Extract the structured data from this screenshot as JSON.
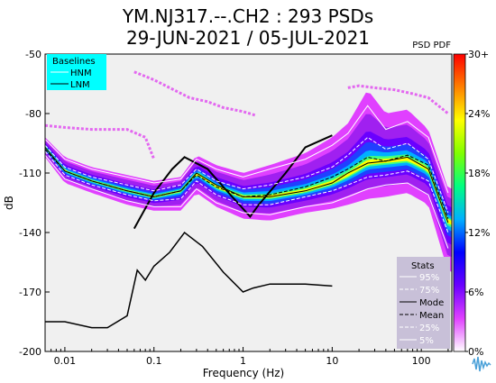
{
  "title_line1": "YM.NJ317.--.CH2 : 293 PSDs",
  "title_line2": "29-JUN-2021 / 05-JUL-2021",
  "pdf_label": "PSD PDF",
  "chart_data": {
    "type": "heatmap",
    "xlabel": "Frequency (Hz)",
    "ylabel": "dB",
    "x_scale": "log",
    "xlim": [
      0.006,
      220
    ],
    "ylim": [
      -200,
      -50
    ],
    "x_ticks": [
      {
        "value": 0.01,
        "label": "0.01"
      },
      {
        "value": 0.1,
        "label": "0.1"
      },
      {
        "value": 1,
        "label": "1"
      },
      {
        "value": 10,
        "label": "10"
      },
      {
        "value": 100,
        "label": "100"
      }
    ],
    "y_ticks": [
      {
        "value": -50,
        "label": "-50"
      },
      {
        "value": -80,
        "label": "-80"
      },
      {
        "value": -110,
        "label": "-110"
      },
      {
        "value": -140,
        "label": "-140"
      },
      {
        "value": -170,
        "label": "-170"
      },
      {
        "value": -200,
        "label": "-200"
      }
    ],
    "colorbar": {
      "ticks": [
        {
          "value": 0,
          "label": "0%"
        },
        {
          "value": 6,
          "label": "6%"
        },
        {
          "value": 12,
          "label": "12%"
        },
        {
          "value": 18,
          "label": "18%"
        },
        {
          "value": 24,
          "label": "24%"
        },
        {
          "value": 30,
          "label": "30+"
        }
      ],
      "colors": [
        "#ffffff",
        "#e040ff",
        "#6a00ff",
        "#0000ff",
        "#00b0ff",
        "#00ff80",
        "#80ff00",
        "#ffff00",
        "#ff8000",
        "#ff0000"
      ]
    },
    "legend_baselines": {
      "title": "Baselines",
      "entries": [
        "HNM",
        "LNM"
      ],
      "bg": "#00ffff"
    },
    "legend_stats": {
      "title": "Stats",
      "entries": [
        "95%",
        "75%",
        "Mode",
        "Mean",
        "25%",
        "5%"
      ],
      "bg": "#c8c0d8"
    },
    "series": [
      {
        "name": "HNM",
        "x": [
          0.06,
          0.1,
          0.16,
          0.22,
          0.4,
          0.6,
          1.2,
          1.5,
          3,
          5,
          10
        ],
        "y": [
          -138,
          -120,
          -108,
          -102,
          -108,
          -117,
          -132,
          -126,
          -110,
          -97,
          -91
        ]
      },
      {
        "name": "LNM",
        "x": [
          0.006,
          0.01,
          0.02,
          0.03,
          0.05,
          0.065,
          0.08,
          0.1,
          0.15,
          0.22,
          0.35,
          0.6,
          1,
          1.3,
          2,
          5,
          10
        ],
        "y": [
          -185,
          -185,
          -188,
          -188,
          -182,
          -159,
          -164,
          -157,
          -150,
          -140,
          -147,
          -160,
          -170,
          -168,
          -166,
          -166,
          -167
        ]
      },
      {
        "name": "95%",
        "x": [
          0.006,
          0.01,
          0.02,
          0.05,
          0.1,
          0.2,
          0.3,
          0.5,
          1,
          2,
          5,
          10,
          15,
          25,
          40,
          70,
          120,
          200
        ],
        "y": [
          -93,
          -103,
          -108,
          -112,
          -115,
          -113,
          -103,
          -108,
          -112,
          -108,
          -103,
          -96,
          -90,
          -76,
          -88,
          -84,
          -92,
          -120
        ]
      },
      {
        "name": "75%",
        "x": [
          0.006,
          0.01,
          0.02,
          0.05,
          0.1,
          0.2,
          0.3,
          0.5,
          1,
          2,
          5,
          10,
          15,
          25,
          40,
          70,
          120,
          200
        ],
        "y": [
          -96,
          -107,
          -112,
          -116,
          -119,
          -116,
          -108,
          -114,
          -118,
          -116,
          -112,
          -107,
          -101,
          -92,
          -98,
          -95,
          -103,
          -130
        ]
      },
      {
        "name": "Mode",
        "x": [
          0.006,
          0.01,
          0.02,
          0.05,
          0.1,
          0.2,
          0.3,
          0.5,
          1,
          2,
          5,
          10,
          15,
          25,
          40,
          70,
          120,
          200
        ],
        "y": [
          -97,
          -109,
          -114,
          -119,
          -122,
          -119,
          -110,
          -116,
          -122,
          -122,
          -119,
          -115,
          -110,
          -105,
          -104,
          -102,
          -108,
          -135
        ]
      },
      {
        "name": "Mean",
        "x": [
          0.006,
          0.01,
          0.02,
          0.05,
          0.1,
          0.2,
          0.3,
          0.5,
          1,
          2,
          5,
          10,
          15,
          25,
          40,
          70,
          120,
          200
        ],
        "y": [
          -98,
          -109,
          -114,
          -119,
          -122,
          -119,
          -111,
          -117,
          -122,
          -121,
          -117,
          -112,
          -108,
          -102,
          -104,
          -101,
          -106,
          -133
        ]
      },
      {
        "name": "25%",
        "x": [
          0.006,
          0.01,
          0.02,
          0.05,
          0.1,
          0.2,
          0.3,
          0.5,
          1,
          2,
          5,
          10,
          15,
          25,
          40,
          70,
          120,
          200
        ],
        "y": [
          -99,
          -111,
          -116,
          -121,
          -124,
          -123,
          -114,
          -121,
          -126,
          -126,
          -122,
          -119,
          -116,
          -112,
          -111,
          -109,
          -114,
          -140
        ]
      },
      {
        "name": "5%",
        "x": [
          0.006,
          0.01,
          0.02,
          0.05,
          0.1,
          0.2,
          0.3,
          0.5,
          1,
          2,
          5,
          10,
          15,
          25,
          40,
          70,
          120,
          200
        ],
        "y": [
          -101,
          -113,
          -118,
          -124,
          -127,
          -127,
          -118,
          -125,
          -130,
          -131,
          -127,
          -125,
          -122,
          -118,
          -116,
          -115,
          -121,
          -148
        ]
      }
    ],
    "pdf_band": {
      "x": [
        0.006,
        0.01,
        0.02,
        0.05,
        0.1,
        0.2,
        0.3,
        0.5,
        1,
        2,
        5,
        10,
        15,
        25,
        40,
        70,
        120,
        200
      ],
      "y_top": [
        -92,
        -102,
        -107,
        -111,
        -114,
        -112,
        -101,
        -106,
        -110,
        -106,
        -100,
        -92,
        -85,
        -68,
        -80,
        -78,
        -88,
        -118
      ],
      "y_bottom": [
        -102,
        -115,
        -120,
        -126,
        -129,
        -129,
        -120,
        -127,
        -133,
        -134,
        -130,
        -128,
        -126,
        -123,
        -122,
        -120,
        -126,
        -160
      ],
      "y_core": [
        -97,
        -109,
        -114,
        -119,
        -122,
        -119,
        -110,
        -117,
        -122,
        -122,
        -119,
        -115,
        -111,
        -105,
        -104,
        -103,
        -108,
        -135
      ]
    },
    "outlier_bands": [
      {
        "x": [
          0.006,
          0.01,
          0.02,
          0.05,
          0.08,
          0.1
        ],
        "y": [
          -86,
          -87,
          -88,
          -88,
          -92,
          -103
        ]
      },
      {
        "x": [
          0.06,
          0.1,
          0.15,
          0.25,
          0.4,
          0.6,
          1,
          1.4
        ],
        "y": [
          -59,
          -63,
          -67,
          -72,
          -74,
          -77,
          -79,
          -81
        ]
      },
      {
        "x": [
          15,
          20,
          30,
          50,
          80,
          120,
          200
        ],
        "y": [
          -67,
          -66,
          -67,
          -68,
          -70,
          -72,
          -80
        ]
      }
    ]
  }
}
